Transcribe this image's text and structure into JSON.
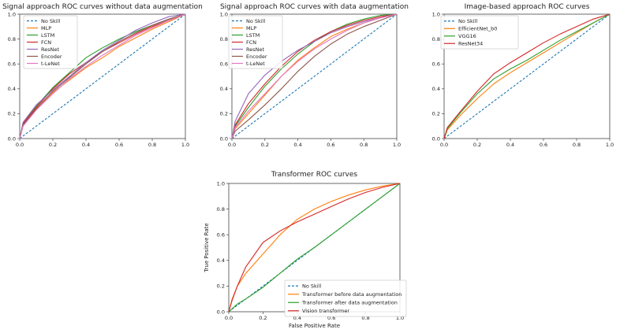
{
  "chart_data": [
    {
      "type": "line",
      "title": "Signal approach ROC curves without data augmentation",
      "xlabel": "",
      "ylabel": "",
      "xlim": [
        0,
        1
      ],
      "ylim": [
        0,
        1
      ],
      "ticks": [
        "0.0",
        "0.2",
        "0.4",
        "0.6",
        "0.8",
        "1.0"
      ],
      "legend_position": "top-left",
      "series": [
        {
          "name": "No Skill",
          "color": "#1f77b4",
          "dashed": true,
          "x": [
            0,
            1
          ],
          "y": [
            0,
            1
          ]
        },
        {
          "name": "MLP",
          "color": "#ff7f0e",
          "x": [
            0,
            0.02,
            0.1,
            0.2,
            0.3,
            0.4,
            0.5,
            0.6,
            0.7,
            0.8,
            0.9,
            1.0
          ],
          "y": [
            0,
            0.1,
            0.24,
            0.37,
            0.47,
            0.57,
            0.65,
            0.74,
            0.81,
            0.88,
            0.94,
            1.0
          ]
        },
        {
          "name": "LSTM",
          "color": "#2ca02c",
          "x": [
            0,
            0.02,
            0.1,
            0.2,
            0.3,
            0.4,
            0.5,
            0.6,
            0.7,
            0.8,
            0.9,
            1.0
          ],
          "y": [
            0,
            0.12,
            0.26,
            0.41,
            0.53,
            0.65,
            0.73,
            0.8,
            0.86,
            0.91,
            0.96,
            1.0
          ]
        },
        {
          "name": "FCN",
          "color": "#d62728",
          "x": [
            0,
            0.02,
            0.1,
            0.2,
            0.3,
            0.4,
            0.5,
            0.6,
            0.7,
            0.8,
            0.9,
            1.0
          ],
          "y": [
            0,
            0.12,
            0.25,
            0.4,
            0.52,
            0.61,
            0.7,
            0.77,
            0.84,
            0.9,
            0.95,
            1.0
          ]
        },
        {
          "name": "ResNet",
          "color": "#9467bd",
          "x": [
            0,
            0.02,
            0.1,
            0.2,
            0.3,
            0.4,
            0.5,
            0.6,
            0.7,
            0.8,
            0.9,
            1.0
          ],
          "y": [
            0,
            0.13,
            0.27,
            0.39,
            0.5,
            0.61,
            0.71,
            0.79,
            0.87,
            0.93,
            0.98,
            1.0
          ]
        },
        {
          "name": "Encoder",
          "color": "#8c564b",
          "x": [
            0,
            0.02,
            0.1,
            0.2,
            0.3,
            0.4,
            0.5,
            0.6,
            0.7,
            0.8,
            0.9,
            1.0
          ],
          "y": [
            0,
            0.11,
            0.24,
            0.38,
            0.49,
            0.6,
            0.7,
            0.78,
            0.85,
            0.91,
            0.96,
            1.0
          ]
        },
        {
          "name": "t-LeNet",
          "color": "#e377c2",
          "x": [
            0,
            0.02,
            0.1,
            0.2,
            0.3,
            0.4,
            0.5,
            0.6,
            0.7,
            0.8,
            0.9,
            1.0
          ],
          "y": [
            0,
            0.1,
            0.23,
            0.36,
            0.48,
            0.58,
            0.67,
            0.75,
            0.83,
            0.89,
            0.95,
            1.0
          ]
        }
      ]
    },
    {
      "type": "line",
      "title": "Signal approach ROC curves with data augmentation",
      "xlabel": "",
      "ylabel": "",
      "xlim": [
        0,
        1
      ],
      "ylim": [
        0,
        1
      ],
      "ticks": [
        "0.0",
        "0.2",
        "0.4",
        "0.6",
        "0.8",
        "1.0"
      ],
      "legend_position": "top-left",
      "series": [
        {
          "name": "No Skill",
          "color": "#1f77b4",
          "dashed": true,
          "x": [
            0,
            1
          ],
          "y": [
            0,
            1
          ]
        },
        {
          "name": "MLP",
          "color": "#ff7f0e",
          "x": [
            0,
            0.02,
            0.1,
            0.2,
            0.3,
            0.4,
            0.5,
            0.6,
            0.7,
            0.8,
            0.9,
            1.0
          ],
          "y": [
            0,
            0.08,
            0.2,
            0.35,
            0.5,
            0.63,
            0.73,
            0.82,
            0.88,
            0.93,
            0.97,
            1.0
          ]
        },
        {
          "name": "LSTM",
          "color": "#2ca02c",
          "x": [
            0,
            0.02,
            0.1,
            0.2,
            0.3,
            0.4,
            0.5,
            0.6,
            0.7,
            0.8,
            0.9,
            1.0
          ],
          "y": [
            0,
            0.1,
            0.25,
            0.42,
            0.56,
            0.68,
            0.78,
            0.86,
            0.92,
            0.96,
            0.99,
            1.0
          ]
        },
        {
          "name": "FCN",
          "color": "#d62728",
          "x": [
            0,
            0.02,
            0.1,
            0.2,
            0.3,
            0.4,
            0.5,
            0.6,
            0.7,
            0.8,
            0.9,
            1.0
          ],
          "y": [
            0,
            0.11,
            0.28,
            0.44,
            0.58,
            0.7,
            0.79,
            0.86,
            0.91,
            0.95,
            0.98,
            1.0
          ]
        },
        {
          "name": "ResNet",
          "color": "#9467bd",
          "x": [
            0,
            0.02,
            0.1,
            0.2,
            0.3,
            0.4,
            0.5,
            0.6,
            0.7,
            0.8,
            0.9,
            1.0
          ],
          "y": [
            0,
            0.14,
            0.36,
            0.51,
            0.62,
            0.71,
            0.78,
            0.85,
            0.9,
            0.94,
            0.97,
            1.0
          ]
        },
        {
          "name": "Encoder",
          "color": "#8c564b",
          "x": [
            0,
            0.02,
            0.1,
            0.2,
            0.3,
            0.4,
            0.5,
            0.6,
            0.7,
            0.8,
            0.9,
            1.0
          ],
          "y": [
            0,
            0.06,
            0.15,
            0.27,
            0.4,
            0.54,
            0.66,
            0.76,
            0.84,
            0.9,
            0.95,
            1.0
          ]
        },
        {
          "name": "t-LeNet",
          "color": "#e377c2",
          "x": [
            0,
            0.02,
            0.1,
            0.2,
            0.3,
            0.4,
            0.5,
            0.6,
            0.7,
            0.8,
            0.9,
            1.0
          ],
          "y": [
            0,
            0.09,
            0.22,
            0.36,
            0.5,
            0.62,
            0.72,
            0.8,
            0.87,
            0.93,
            0.97,
            1.0
          ]
        }
      ]
    },
    {
      "type": "line",
      "title": "Image-based approach ROC curves",
      "xlabel": "",
      "ylabel": "",
      "xlim": [
        0,
        1
      ],
      "ylim": [
        0,
        1
      ],
      "ticks": [
        "0.0",
        "0.2",
        "0.4",
        "0.6",
        "0.8",
        "1.0"
      ],
      "legend_position": "top-left",
      "series": [
        {
          "name": "No Skill",
          "color": "#1f77b4",
          "dashed": true,
          "x": [
            0,
            1
          ],
          "y": [
            0,
            1
          ]
        },
        {
          "name": "EfficientNet_b0",
          "color": "#ff7f0e",
          "x": [
            0,
            0.02,
            0.1,
            0.2,
            0.3,
            0.4,
            0.5,
            0.6,
            0.7,
            0.8,
            0.9,
            1.0
          ],
          "y": [
            0,
            0.07,
            0.19,
            0.32,
            0.44,
            0.53,
            0.61,
            0.69,
            0.77,
            0.85,
            0.93,
            1.0
          ]
        },
        {
          "name": "VGG16",
          "color": "#2ca02c",
          "x": [
            0,
            0.02,
            0.1,
            0.2,
            0.3,
            0.4,
            0.5,
            0.6,
            0.7,
            0.8,
            0.9,
            1.0
          ],
          "y": [
            0,
            0.08,
            0.21,
            0.36,
            0.48,
            0.56,
            0.63,
            0.71,
            0.79,
            0.86,
            0.93,
            1.0
          ]
        },
        {
          "name": "ResNet34",
          "color": "#d62728",
          "x": [
            0,
            0.02,
            0.1,
            0.2,
            0.3,
            0.4,
            0.5,
            0.6,
            0.7,
            0.8,
            0.9,
            1.0
          ],
          "y": [
            0,
            0.09,
            0.22,
            0.38,
            0.52,
            0.61,
            0.69,
            0.77,
            0.84,
            0.9,
            0.96,
            1.0
          ]
        }
      ]
    },
    {
      "type": "line",
      "title": "Transformer ROC curves",
      "xlabel": "False Positive Rate",
      "ylabel": "True Positive Rate",
      "xlim": [
        0,
        1
      ],
      "ylim": [
        0,
        1
      ],
      "ticks": [
        "0.0",
        "0.2",
        "0.4",
        "0.6",
        "0.8",
        "1.0"
      ],
      "legend_position": "bottom-right",
      "series": [
        {
          "name": "No Skill",
          "color": "#1f77b4",
          "dashed": true,
          "x": [
            0,
            1
          ],
          "y": [
            0,
            1
          ]
        },
        {
          "name": "Transformer before data augmentation",
          "color": "#ff7f0e",
          "x": [
            0,
            0.02,
            0.05,
            0.1,
            0.2,
            0.3,
            0.4,
            0.5,
            0.6,
            0.7,
            0.8,
            0.9,
            1.0
          ],
          "y": [
            0,
            0.1,
            0.2,
            0.3,
            0.45,
            0.6,
            0.72,
            0.8,
            0.86,
            0.91,
            0.95,
            0.98,
            1.0
          ]
        },
        {
          "name": "Transformer after data augmentation",
          "color": "#2ca02c",
          "x": [
            0,
            0.05,
            0.1,
            0.2,
            0.3,
            0.4,
            0.5,
            0.6,
            0.7,
            0.8,
            0.9,
            1.0
          ],
          "y": [
            0,
            0.06,
            0.1,
            0.19,
            0.3,
            0.41,
            0.5,
            0.6,
            0.7,
            0.8,
            0.9,
            1.0
          ]
        },
        {
          "name": "Vision transformer",
          "color": "#d62728",
          "x": [
            0,
            0.02,
            0.05,
            0.1,
            0.2,
            0.3,
            0.4,
            0.5,
            0.6,
            0.7,
            0.8,
            0.9,
            1.0
          ],
          "y": [
            0,
            0.09,
            0.2,
            0.35,
            0.54,
            0.63,
            0.7,
            0.76,
            0.82,
            0.88,
            0.93,
            0.97,
            1.0
          ]
        }
      ]
    }
  ]
}
